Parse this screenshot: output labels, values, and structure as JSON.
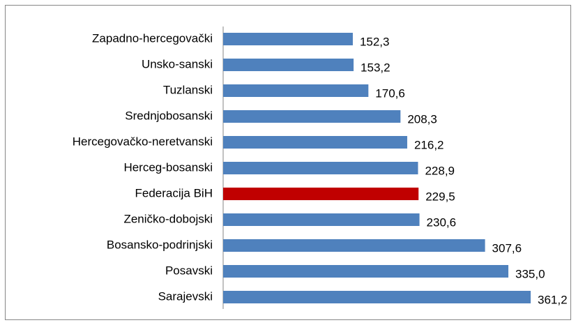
{
  "chart_data": {
    "type": "bar",
    "orientation": "horizontal",
    "categories": [
      "Zapadno-hercegovački",
      "Unsko-sanski",
      "Tuzlanski",
      "Srednjobosanski",
      "Hercegovačko-neretvanski",
      "Herceg-bosanski",
      "Federacija BiH",
      "Zeničko-dobojski",
      "Bosansko-podrinjski",
      "Posavski",
      "Sarajevski"
    ],
    "values": [
      152.3,
      153.2,
      170.6,
      208.3,
      216.2,
      228.9,
      229.5,
      230.6,
      307.6,
      335.0,
      361.2
    ],
    "value_labels": [
      "152,3",
      "153,2",
      "170,6",
      "208,3",
      "216,2",
      "228,9",
      "229,5",
      "230,6",
      "307,6",
      "335,0",
      "361,2"
    ],
    "colors": [
      "#4f81bd",
      "#4f81bd",
      "#4f81bd",
      "#4f81bd",
      "#4f81bd",
      "#4f81bd",
      "#c00000",
      "#4f81bd",
      "#4f81bd",
      "#4f81bd",
      "#4f81bd"
    ]
  }
}
